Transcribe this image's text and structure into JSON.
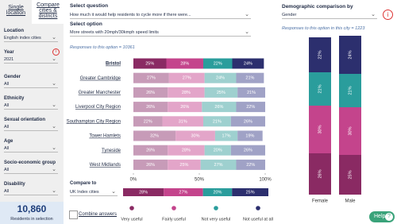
{
  "sidebar": {
    "tabs": [
      "Single location",
      "Compare cities & districts"
    ],
    "filters": [
      {
        "label": "Location",
        "value": "English index cities"
      },
      {
        "label": "Year",
        "value": "2021"
      },
      {
        "label": "Gender",
        "value": "All"
      },
      {
        "label": "Ethnicity",
        "value": "All"
      },
      {
        "label": "Sexual orientation",
        "value": "All"
      },
      {
        "label": "Age",
        "value": "All"
      },
      {
        "label": "Socio-economic group",
        "value": "All"
      },
      {
        "label": "Disability",
        "value": "All"
      }
    ],
    "count": "10,860",
    "count_label": "Residents in selection"
  },
  "question": {
    "label": "Select question",
    "value": "How much it would help residents to cycle more if there were...",
    "option_label": "Select option",
    "option_value": "More streets with 20mph/30kmph speed limits",
    "responses": "Responses to this option = 10361"
  },
  "compare": {
    "label": "Compare to",
    "value": "UK Index cities",
    "combine": "Combine answers"
  },
  "demographic": {
    "title": "Demographic comparison by",
    "value": "Gender",
    "responses": "Responses to this option in this city = 1223"
  },
  "help": "Help",
  "chart_data": [
    {
      "type": "stacked-bar-horizontal",
      "highlight_index": 0,
      "categories": [
        "Bristol",
        "Greater Cambridge",
        "Greater Manchester",
        "Liverpool City Region",
        "Southampton City Region",
        "Tower Hamlets",
        "Tyneside",
        "West Midlands"
      ],
      "series": [
        {
          "name": "Very useful",
          "color": "#8a2a63",
          "muted_color": "#c79bb8",
          "values": [
            25,
            27,
            26,
            26,
            22,
            32,
            26,
            26
          ],
          "value_labels": [
            "25%",
            "27%",
            "26%",
            "26%",
            "22%",
            "32%",
            "26%",
            "26%"
          ]
        },
        {
          "name": "Fairly useful",
          "color": "#c4448c",
          "muted_color": "#e3a5c9",
          "values": [
            28,
            27,
            28,
            26,
            31,
            30,
            28,
            25
          ],
          "value_labels": [
            "28%",
            "27%",
            "28%",
            "26%",
            "31%",
            "30%",
            "28%",
            "25%"
          ]
        },
        {
          "name": "Not very useful",
          "color": "#2a9d9c",
          "muted_color": "#9ed0cf",
          "values": [
            22,
            24,
            25,
            26,
            21,
            17,
            20,
            27
          ],
          "value_labels": [
            "22%",
            "24%",
            "25%",
            "26%",
            "21%",
            "17%",
            "20%",
            "27%"
          ]
        },
        {
          "name": "Not useful at all",
          "color": "#2c2f6e",
          "muted_color": "#a0a2c6",
          "values": [
            24,
            21,
            21,
            22,
            26,
            19,
            26,
            22
          ],
          "value_labels": [
            "24%",
            "21%",
            "21%",
            "22%",
            "26%",
            "19%",
            "26%",
            "22%"
          ]
        }
      ],
      "xlim": [
        0,
        100
      ],
      "xticks": [
        {
          "value": 0,
          "label": "0%"
        },
        {
          "value": 50,
          "label": "50%"
        },
        {
          "value": 100,
          "label": "100%"
        }
      ]
    },
    {
      "type": "stacked-bar-single",
      "xlim": [
        0,
        100
      ],
      "series": [
        {
          "color": "#8a2a63",
          "values": [
            28
          ],
          "value_labels": [
            "28%"
          ]
        },
        {
          "color": "#c4448c",
          "values": [
            27
          ],
          "value_labels": [
            "27%"
          ]
        },
        {
          "color": "#2a9d9c",
          "values": [
            20
          ],
          "value_labels": [
            "20%"
          ]
        },
        {
          "color": "#2c2f6e",
          "values": [
            25
          ],
          "value_labels": [
            "25%"
          ]
        }
      ]
    },
    {
      "type": "stacked-column",
      "categories": [
        "Female",
        "Male"
      ],
      "ylim": [
        0,
        100
      ],
      "series": [
        {
          "color": "#8a2a63",
          "values": [
            26,
            25
          ],
          "value_labels": [
            "26%",
            "25%"
          ]
        },
        {
          "color": "#c4448c",
          "values": [
            30,
            30
          ],
          "value_labels": [
            "30%",
            "30%"
          ]
        },
        {
          "color": "#2a9d9c",
          "values": [
            21,
            21
          ],
          "value_labels": [
            "21%",
            "21%"
          ]
        },
        {
          "color": "#2c2f6e",
          "values": [
            22,
            24
          ],
          "value_labels": [
            "22%",
            "24%"
          ]
        }
      ]
    }
  ]
}
